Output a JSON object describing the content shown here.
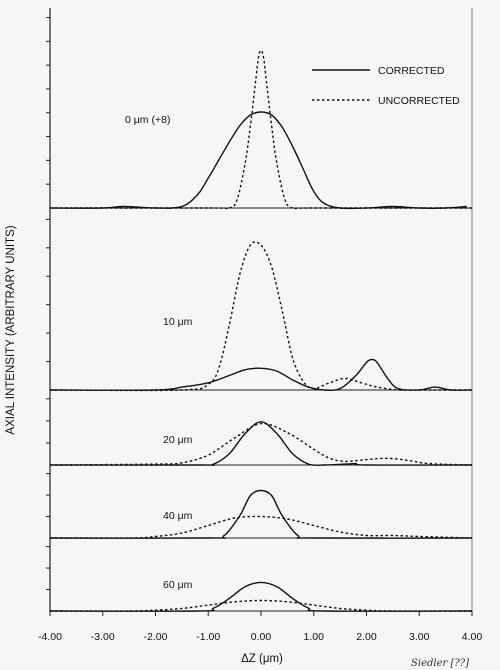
{
  "chart_data": {
    "type": "line",
    "xlabel": "ΔZ (μm)",
    "ylabel": "AXIAL INTENSITY (ARBITRARY UNITS)",
    "xlim": [
      -4,
      4
    ],
    "x_ticks": [
      "-4.00",
      "-3.00",
      "-2.00",
      "-1.00",
      "0.00",
      "1.00",
      "2.00",
      "3.00",
      "4.00"
    ],
    "legend": {
      "placement": "top-right",
      "entries": [
        {
          "name": "CORRECTED",
          "style": "solid"
        },
        {
          "name": "UNCORRECTED",
          "style": "dashed"
        }
      ]
    },
    "corner_note": "Siedler [??]",
    "panels": [
      {
        "label": "0 μm  (+8)",
        "ylim": [
          0,
          1.0
        ],
        "corrected": {
          "x": [
            -4,
            -3,
            -2.6,
            -2,
            -1.5,
            -1.2,
            -1,
            -0.8,
            -0.6,
            -0.4,
            -0.2,
            0,
            0.2,
            0.4,
            0.6,
            0.8,
            1,
            1.2,
            1.5,
            2,
            2.5,
            3,
            3.5,
            3.9
          ],
          "y": [
            0,
            0,
            0.01,
            0,
            0.01,
            0.09,
            0.2,
            0.32,
            0.44,
            0.55,
            0.62,
            0.64,
            0.62,
            0.54,
            0.41,
            0.26,
            0.11,
            0.03,
            0,
            0,
            0.01,
            0,
            0,
            0.01
          ]
        },
        "uncorrected": {
          "x": [
            -4,
            -1,
            -0.6,
            -0.45,
            -0.3,
            -0.2,
            -0.1,
            -0.05,
            0,
            0.05,
            0.1,
            0.2,
            0.3,
            0.45,
            0.6,
            1,
            4
          ],
          "y": [
            0,
            0,
            0,
            0.06,
            0.3,
            0.55,
            0.85,
            1.0,
            1.05,
            1.0,
            0.85,
            0.55,
            0.3,
            0.06,
            0,
            0,
            0
          ]
        }
      },
      {
        "label": "10 μm",
        "ylim": [
          0,
          1.0
        ],
        "corrected": {
          "x": [
            -4,
            -2,
            -1.5,
            -1,
            -0.6,
            -0.3,
            0,
            0.3,
            0.6,
            0.9,
            1.2,
            1.5,
            1.8,
            2.0,
            2.1,
            2.2,
            2.4,
            2.6,
            3,
            3.3,
            3.6,
            4
          ],
          "y": [
            0,
            0,
            0.02,
            0.05,
            0.1,
            0.14,
            0.15,
            0.13,
            0.07,
            0.02,
            0,
            0.01,
            0.1,
            0.19,
            0.21,
            0.19,
            0.08,
            0.01,
            0,
            0.02,
            0,
            0
          ]
        },
        "uncorrected": {
          "x": [
            -4,
            -1.5,
            -1,
            -0.8,
            -0.6,
            -0.4,
            -0.2,
            0,
            0.2,
            0.4,
            0.6,
            0.8,
            1,
            1.3,
            1.6,
            1.9,
            2.2,
            2.6,
            3,
            3.4,
            4
          ],
          "y": [
            0,
            0,
            0.04,
            0.15,
            0.45,
            0.8,
            1.0,
            1.0,
            0.85,
            0.55,
            0.22,
            0.06,
            0.01,
            0.05,
            0.08,
            0.05,
            0.02,
            0,
            0,
            0,
            0
          ]
        }
      },
      {
        "label": "20 μm",
        "ylim": [
          0,
          1.0
        ],
        "corrected": {
          "x": [
            -4,
            -1.2,
            -0.9,
            -0.6,
            -0.3,
            0,
            0.3,
            0.6,
            0.9,
            1.2,
            1.6,
            1.8,
            2,
            4
          ],
          "y": [
            0,
            0,
            0.02,
            0.25,
            0.7,
            0.96,
            0.7,
            0.25,
            0.02,
            0,
            0.02,
            0.03,
            0,
            0
          ]
        },
        "uncorrected": {
          "x": [
            -4,
            -2,
            -1.5,
            -1,
            -0.5,
            0,
            0.5,
            1,
            1.3,
            1.6,
            2,
            2.4,
            2.8,
            3.2,
            4
          ],
          "y": [
            0,
            0.02,
            0.05,
            0.22,
            0.6,
            0.92,
            0.72,
            0.35,
            0.15,
            0.08,
            0.12,
            0.15,
            0.1,
            0.03,
            0
          ]
        }
      },
      {
        "label": "40 μm",
        "ylim": [
          0,
          1.0
        ],
        "corrected": {
          "x": [
            -4,
            -1,
            -0.7,
            -0.4,
            -0.2,
            0,
            0.2,
            0.4,
            0.7,
            1,
            4
          ],
          "y": [
            0,
            0,
            0.05,
            0.45,
            0.85,
            0.95,
            0.85,
            0.45,
            0.05,
            0,
            0
          ]
        },
        "uncorrected": {
          "x": [
            -4,
            -2.5,
            -2,
            -1.5,
            -1,
            -0.5,
            0,
            0.5,
            1,
            1.5,
            2,
            2.5,
            3,
            4
          ],
          "y": [
            0,
            0,
            0.03,
            0.1,
            0.25,
            0.4,
            0.43,
            0.38,
            0.25,
            0.12,
            0.05,
            0.05,
            0.03,
            0
          ]
        }
      },
      {
        "label": "60 μm",
        "ylim": [
          0,
          1.0
        ],
        "corrected": {
          "x": [
            -4,
            -1.2,
            -0.9,
            -0.6,
            -0.3,
            0,
            0.3,
            0.6,
            0.9,
            1.2,
            4
          ],
          "y": [
            0,
            0,
            0.07,
            0.3,
            0.58,
            0.68,
            0.58,
            0.3,
            0.07,
            0,
            0
          ]
        },
        "uncorrected": {
          "x": [
            -4,
            -2.5,
            -2,
            -1.5,
            -1,
            -0.5,
            0,
            0.5,
            1,
            1.5,
            2,
            2.5,
            4
          ],
          "y": [
            0,
            0,
            0.02,
            0.06,
            0.14,
            0.22,
            0.25,
            0.22,
            0.14,
            0.06,
            0.02,
            0,
            0
          ]
        }
      }
    ]
  }
}
